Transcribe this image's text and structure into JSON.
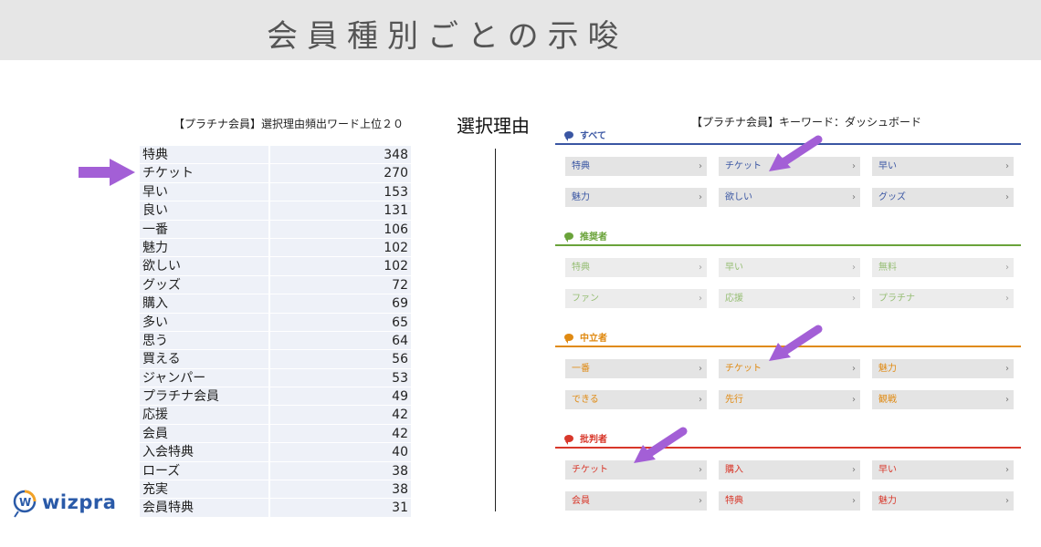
{
  "header": {
    "title": "会員種別ごとの示唆"
  },
  "left_table": {
    "title": "【プラチナ会員】選択理由頻出ワード上位２０",
    "rows": [
      {
        "word": "特典",
        "count": "348"
      },
      {
        "word": "チケット",
        "count": "270"
      },
      {
        "word": "早い",
        "count": "153"
      },
      {
        "word": "良い",
        "count": "131"
      },
      {
        "word": "一番",
        "count": "106"
      },
      {
        "word": "魅力",
        "count": "102"
      },
      {
        "word": "欲しい",
        "count": "102"
      },
      {
        "word": "グッズ",
        "count": "72"
      },
      {
        "word": "購入",
        "count": "69"
      },
      {
        "word": "多い",
        "count": "65"
      },
      {
        "word": "思う",
        "count": "64"
      },
      {
        "word": "買える",
        "count": "56"
      },
      {
        "word": "ジャンパー",
        "count": "53"
      },
      {
        "word": "プラチナ会員",
        "count": "49"
      },
      {
        "word": "応援",
        "count": "42"
      },
      {
        "word": "会員",
        "count": "42"
      },
      {
        "word": "入会特典",
        "count": "40"
      },
      {
        "word": "ローズ",
        "count": "38"
      },
      {
        "word": "充実",
        "count": "38"
      },
      {
        "word": "会員特典",
        "count": "31"
      }
    ]
  },
  "center": {
    "label": "選択理由"
  },
  "dashboard": {
    "title": "【プラチナ会員】キーワード：ダッシュボード",
    "chevron": "›",
    "sections": [
      {
        "label": "すべて",
        "color": "#3a56a3",
        "items": [
          "特典",
          "チケット",
          "早い",
          "魅力",
          "欲しい",
          "グッズ"
        ]
      },
      {
        "label": "推奨者",
        "color": "#6aa33a",
        "items": [
          "特典",
          "早い",
          "無料",
          "ファン",
          "応援",
          "プラチナ"
        ]
      },
      {
        "label": "中立者",
        "color": "#e08a12",
        "items": [
          "一番",
          "チケット",
          "魅力",
          "できる",
          "先行",
          "観戦"
        ]
      },
      {
        "label": "批判者",
        "color": "#d8372a",
        "items": [
          "チケット",
          "購入",
          "早い",
          "会員",
          "特典",
          "魅力"
        ]
      }
    ]
  },
  "logo": {
    "text": "wizpra"
  },
  "colors": {
    "arrow": "#a35fd6",
    "table_bg": "#eef1f8"
  }
}
